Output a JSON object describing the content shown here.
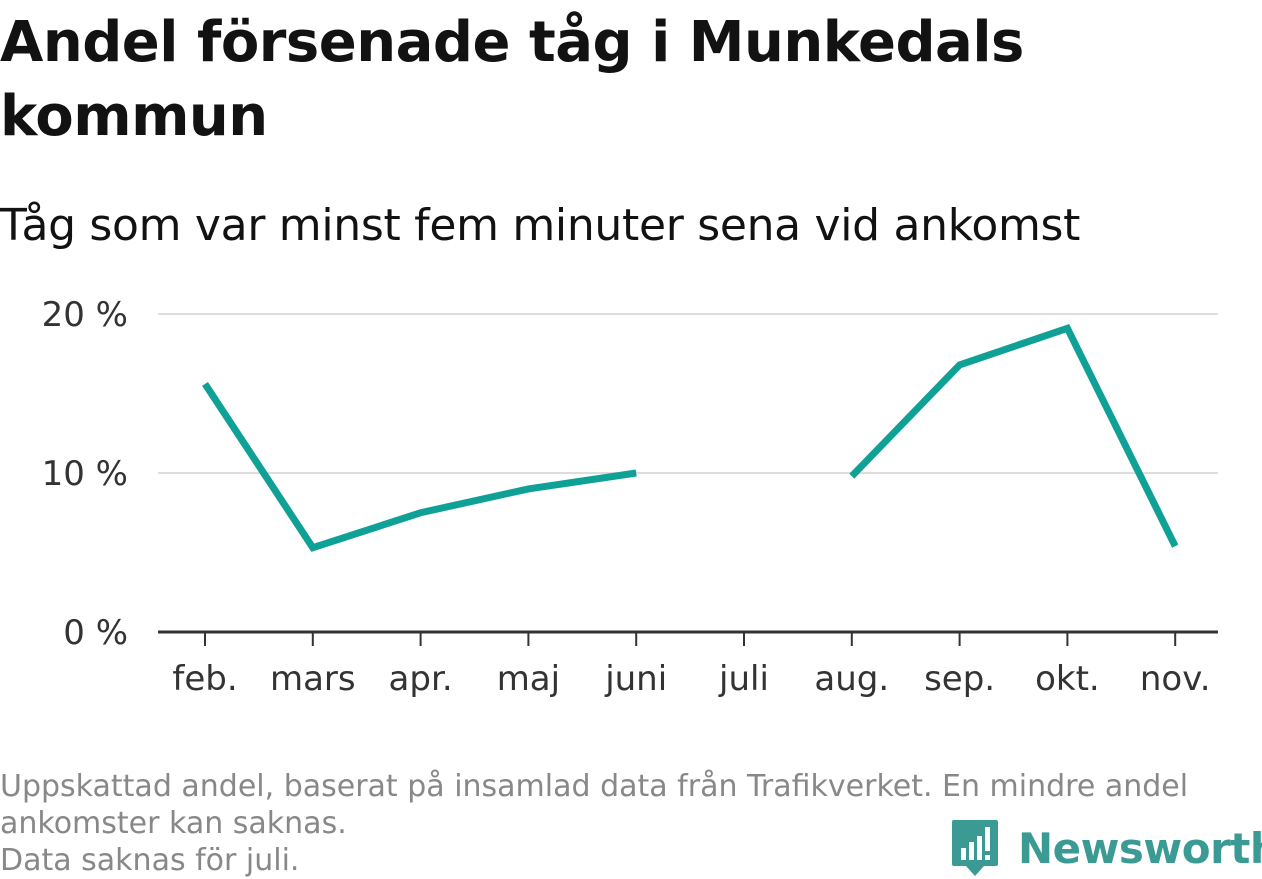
{
  "title": "Andel försenade tåg i Munkedals kommun",
  "subtitle": "Tåg som var minst fem minuter sena vid ankomst",
  "footer": {
    "note1": "Uppskattad andel, baserat på insamlad data från Trafikverket. En mindre andel ankomster kan saknas.",
    "note2": "Data saknas för juli."
  },
  "brand": {
    "name": "Newsworthy",
    "icon": "newsworthy-logo-icon",
    "color": "#3c9a95"
  },
  "chart_data": {
    "type": "line",
    "categories": [
      "feb.",
      "mars",
      "apr.",
      "maj",
      "juni",
      "juli",
      "aug.",
      "sep.",
      "okt.",
      "nov."
    ],
    "series": [
      {
        "values": [
          15.6,
          5.3,
          7.5,
          9.0,
          10.0,
          null,
          9.8,
          16.8,
          19.1,
          5.4
        ],
        "color": "#0fa196"
      }
    ],
    "y_ticks": [
      0,
      10,
      20
    ],
    "y_tick_labels": [
      "0 %",
      "10 %",
      "20 %"
    ],
    "ylim": [
      0,
      20
    ],
    "grid": true,
    "xlabel": "",
    "ylabel": ""
  }
}
